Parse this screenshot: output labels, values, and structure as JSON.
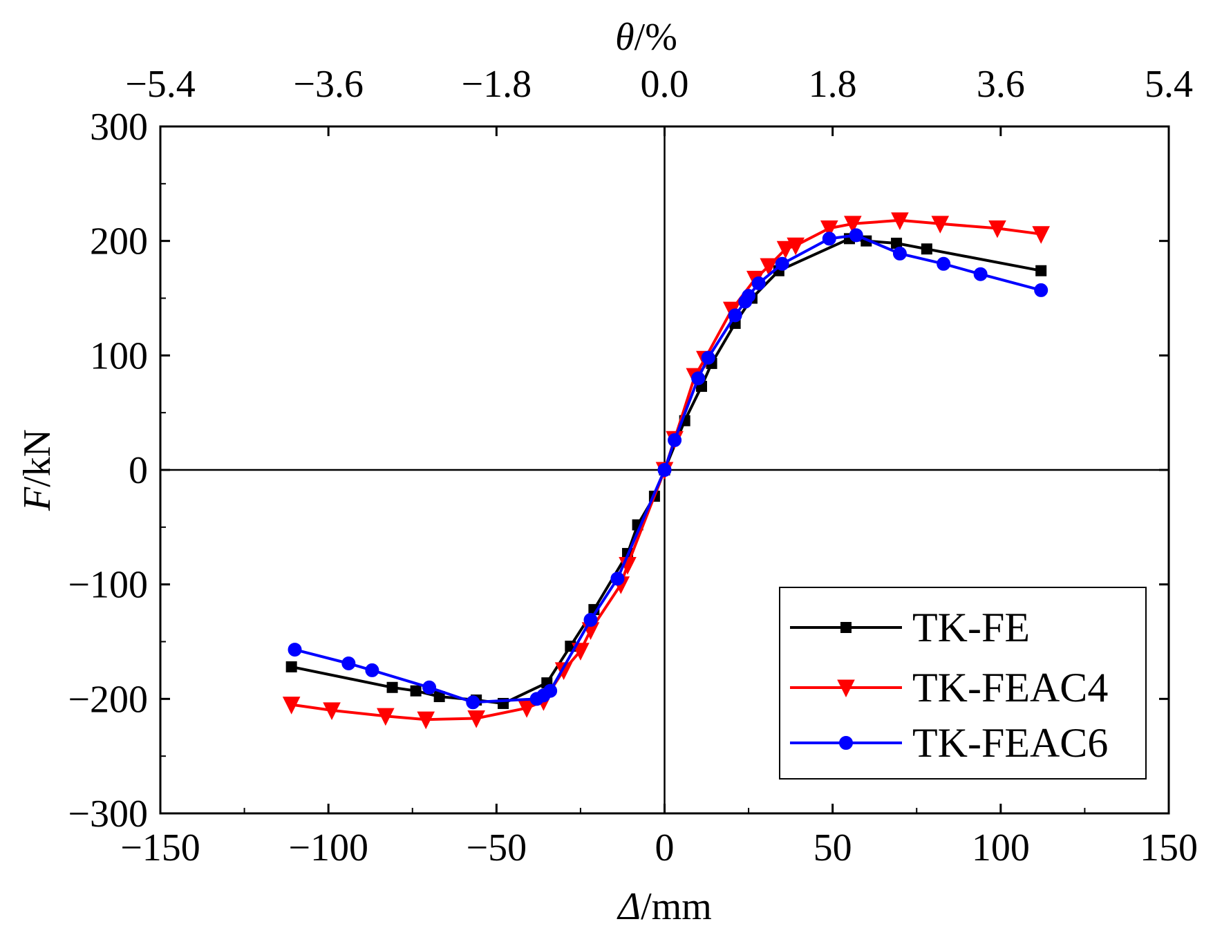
{
  "chart_data": {
    "type": "line",
    "xlabel_italic": "Δ",
    "xlabel_unit": "/mm",
    "ylabel_italic": "F",
    "ylabel_unit": "/kN",
    "top_xlabel_italic": "θ",
    "top_xlabel_unit": "/%",
    "xlim": [
      -150,
      150
    ],
    "ylim": [
      -300,
      300
    ],
    "xticks": [
      -150,
      -100,
      -50,
      0,
      50,
      100,
      150
    ],
    "xtick_labels": [
      "−150",
      "−100",
      "−50",
      "0",
      "50",
      "100",
      "150"
    ],
    "yticks": [
      -300,
      -200,
      -100,
      0,
      100,
      200,
      300
    ],
    "ytick_labels": [
      "−300",
      "−200",
      "−100",
      "0",
      "100",
      "200",
      "300"
    ],
    "top_xlim": [
      -5.4,
      5.4
    ],
    "top_xticks": [
      -5.4,
      -3.6,
      -1.8,
      0.0,
      1.8,
      3.6,
      5.4
    ],
    "top_xtick_labels": [
      "−5.4",
      "−3.6",
      "−1.8",
      "0.0",
      "1.8",
      "3.6",
      "5.4"
    ],
    "legend_position": "bottom-right",
    "series": [
      {
        "name": "TK-FE",
        "color": "#000000",
        "marker": "square",
        "points": [
          [
            -111,
            -172
          ],
          [
            -81,
            -190
          ],
          [
            -74,
            -193
          ],
          [
            -67,
            -198
          ],
          [
            -56,
            -201
          ],
          [
            -48,
            -204
          ],
          [
            -35,
            -186
          ],
          [
            -28,
            -154
          ],
          [
            -21,
            -122
          ],
          [
            -11,
            -73
          ],
          [
            -8,
            -48
          ],
          [
            -3,
            -23
          ],
          [
            0,
            0
          ],
          [
            6,
            43
          ],
          [
            11,
            73
          ],
          [
            14,
            93
          ],
          [
            21,
            128
          ],
          [
            26,
            150
          ],
          [
            34,
            174
          ],
          [
            55,
            202
          ],
          [
            60,
            200
          ],
          [
            69,
            198
          ],
          [
            78,
            193
          ],
          [
            112,
            174
          ]
        ]
      },
      {
        "name": "TK-FEAC4",
        "color": "#ff0000",
        "marker": "triangle-down",
        "points": [
          [
            -111,
            -205
          ],
          [
            -99,
            -210
          ],
          [
            -83,
            -215
          ],
          [
            -71,
            -218
          ],
          [
            -56,
            -217
          ],
          [
            -41,
            -208
          ],
          [
            -36,
            -202
          ],
          [
            -30,
            -175
          ],
          [
            -25,
            -158
          ],
          [
            -22,
            -140
          ],
          [
            -13,
            -100
          ],
          [
            -11,
            -83
          ],
          [
            0,
            0
          ],
          [
            3,
            27
          ],
          [
            9,
            82
          ],
          [
            12,
            97
          ],
          [
            20,
            140
          ],
          [
            27,
            167
          ],
          [
            31,
            178
          ],
          [
            36,
            193
          ],
          [
            39,
            196
          ],
          [
            49,
            211
          ],
          [
            56,
            215
          ],
          [
            70,
            218
          ],
          [
            82,
            215
          ],
          [
            99,
            211
          ],
          [
            112,
            206
          ]
        ]
      },
      {
        "name": "TK-FEAC6",
        "color": "#0000ff",
        "marker": "circle",
        "points": [
          [
            -110,
            -157
          ],
          [
            -94,
            -169
          ],
          [
            -87,
            -175
          ],
          [
            -70,
            -190
          ],
          [
            -57,
            -203
          ],
          [
            -38,
            -200
          ],
          [
            -36,
            -197
          ],
          [
            -34,
            -193
          ],
          [
            -22,
            -131
          ],
          [
            -14,
            -95
          ],
          [
            0,
            0
          ],
          [
            3,
            26
          ],
          [
            10,
            80
          ],
          [
            13,
            98
          ],
          [
            21,
            135
          ],
          [
            24,
            147
          ],
          [
            25,
            152
          ],
          [
            28,
            163
          ],
          [
            35,
            180
          ],
          [
            49,
            202
          ],
          [
            57,
            205
          ],
          [
            70,
            189
          ],
          [
            83,
            180
          ],
          [
            94,
            171
          ],
          [
            112,
            157
          ]
        ]
      }
    ]
  }
}
